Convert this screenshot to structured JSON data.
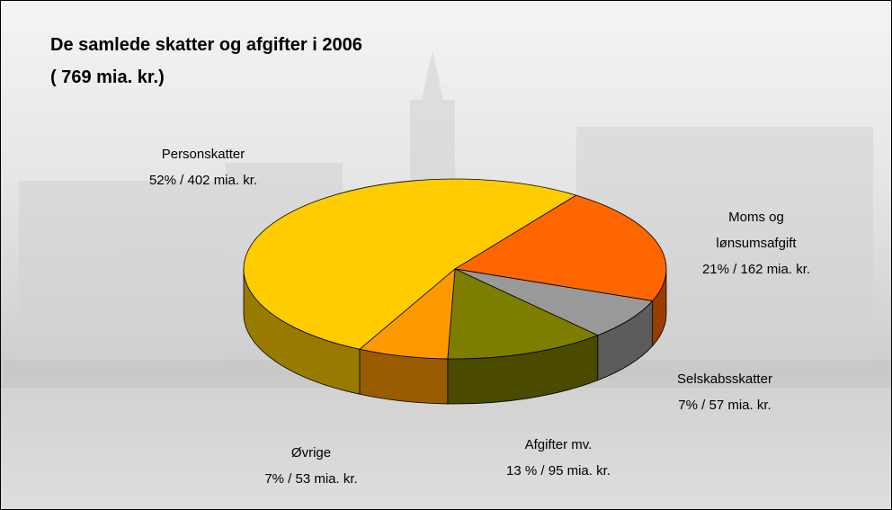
{
  "chart_data": {
    "type": "pie",
    "three_d": true,
    "title": "De samlede skatter og afgifter i 2006",
    "subtitle": "( 769 mia. kr.)",
    "categories": [
      "Personskatter",
      "Moms og lønsumsafgift",
      "Selskabsskatter",
      "Afgifter mv.",
      "Øvrige"
    ],
    "values": [
      402,
      162,
      57,
      95,
      53
    ],
    "value_labels": [
      "52% / 402 mia. kr.",
      "21% / 162 mia. kr.",
      "7% / 57 mia. kr.",
      "13 % / 95 mia. kr.",
      "7% / 53 mia. kr."
    ],
    "colors": [
      "#ffcc00",
      "#ff6600",
      "#999999",
      "#7d7d00",
      "#ff9900"
    ]
  }
}
